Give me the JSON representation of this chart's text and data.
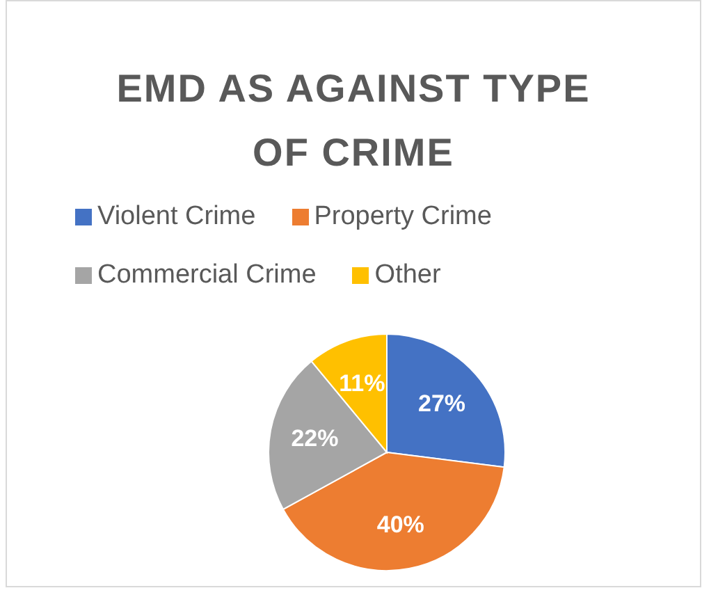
{
  "chart_data": {
    "type": "pie",
    "title": "EMD AS AGAINST TYPE OF CRIME",
    "categories": [
      "Violent Crime",
      "Property Crime",
      "Commercial Crime",
      "Other"
    ],
    "values": [
      27,
      40,
      22,
      11
    ],
    "colors": [
      "#4472c4",
      "#ed7d31",
      "#a5a5a5",
      "#ffc000"
    ],
    "value_labels": [
      "27%",
      "40%",
      "22%",
      "11%"
    ],
    "legend": "top"
  }
}
